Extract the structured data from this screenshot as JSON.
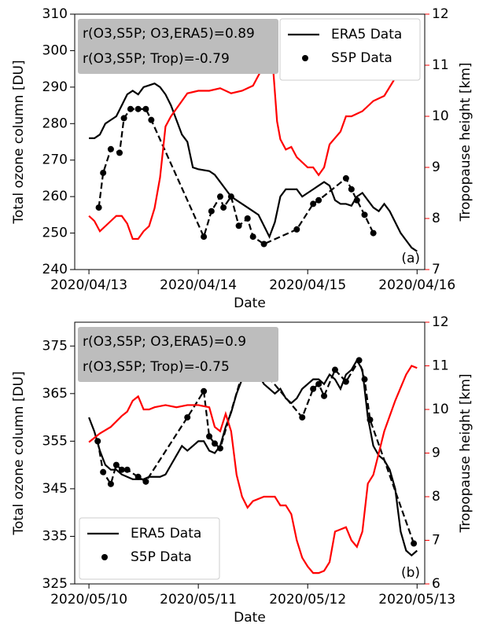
{
  "chart_data": [
    {
      "type": "line",
      "panel_label": "(a)",
      "xlabel": "Date",
      "ylabel": "Total ozone column [DU]",
      "y2label": "Tropopause height [km]",
      "y2color": "#ff0000",
      "legend": "upper right",
      "annotations": [
        "r(O3,S5P; O3,ERA5)=0.89",
        "r(O3,S5P; Trop)=-0.79"
      ],
      "xlim": [
        -0.13,
        3.07
      ],
      "xticks": [
        {
          "value": 0,
          "label": "2020/04/13"
        },
        {
          "value": 1,
          "label": "2020/04/14"
        },
        {
          "value": 2,
          "label": "2020/04/15"
        },
        {
          "value": 3,
          "label": "2020/04/16"
        }
      ],
      "ylim": [
        240,
        310
      ],
      "yticks": [
        240,
        250,
        260,
        270,
        280,
        290,
        300,
        310
      ],
      "y2lim": [
        7,
        12
      ],
      "y2ticks": [
        7,
        8,
        9,
        10,
        11,
        12
      ],
      "series": [
        {
          "name": "ERA5 Data",
          "color": "#000000",
          "axis": "y",
          "x": [
            0,
            0.05,
            0.1,
            0.15,
            0.2,
            0.25,
            0.3,
            0.35,
            0.4,
            0.45,
            0.5,
            0.55,
            0.6,
            0.65,
            0.7,
            0.75,
            0.8,
            0.85,
            0.9,
            0.95,
            1.0,
            1.1,
            1.15,
            1.2,
            1.25,
            1.3,
            1.35,
            1.4,
            1.45,
            1.5,
            1.55,
            1.6,
            1.65,
            1.7,
            1.75,
            1.8,
            1.85,
            1.9,
            1.95,
            2.0,
            2.05,
            2.1,
            2.15,
            2.2,
            2.25,
            2.3,
            2.35,
            2.4,
            2.45,
            2.5,
            2.55,
            2.6,
            2.65,
            2.7,
            2.75,
            2.8,
            2.85,
            2.9,
            2.95,
            3.0
          ],
          "values": [
            276,
            276,
            277,
            280,
            281,
            282,
            285,
            288,
            289,
            288,
            290,
            290.5,
            291,
            290,
            288,
            285,
            281,
            277,
            275,
            268,
            267.5,
            267,
            266,
            264,
            262,
            260,
            259,
            258,
            257,
            256,
            255,
            252,
            249,
            253,
            260,
            262,
            262,
            262,
            260,
            261,
            262,
            263,
            264,
            263,
            259,
            258,
            258,
            257.5,
            260,
            261,
            259,
            257,
            256,
            258,
            256,
            253,
            250,
            248,
            246,
            245
          ]
        },
        {
          "name": "S5P Data",
          "color": "#000000",
          "axis": "y",
          "dashed": true,
          "markers": true,
          "x": [
            0.09,
            0.13,
            0.2,
            0.28,
            0.32,
            0.38,
            0.45,
            0.52,
            0.57,
            1.05,
            1.12,
            1.2,
            1.23,
            1.3,
            1.37,
            1.45,
            1.5,
            1.6,
            1.9,
            2.05,
            2.1,
            2.35,
            2.4,
            2.45,
            2.52,
            2.6
          ],
          "values": [
            257,
            266.5,
            273,
            272,
            281.5,
            284,
            284,
            284,
            281,
            249,
            256,
            260,
            257,
            260,
            252,
            254,
            249,
            247,
            251,
            258,
            259,
            265,
            262,
            259,
            255,
            250
          ]
        },
        {
          "color": "#ff0000",
          "axis": "y2",
          "x": [
            0,
            0.05,
            0.1,
            0.15,
            0.2,
            0.25,
            0.3,
            0.35,
            0.4,
            0.45,
            0.5,
            0.55,
            0.6,
            0.65,
            0.7,
            0.75,
            0.8,
            0.85,
            0.9,
            1.0,
            1.1,
            1.2,
            1.3,
            1.4,
            1.5,
            1.55,
            1.6,
            1.65,
            1.68,
            1.72,
            1.75,
            1.8,
            1.85,
            1.9,
            2.0,
            2.05,
            2.1,
            2.15,
            2.2,
            2.3,
            2.35,
            2.4,
            2.5,
            2.6,
            2.7,
            2.8,
            2.9,
            3.0
          ],
          "values": [
            8.05,
            7.95,
            7.75,
            7.85,
            7.95,
            8.05,
            8.05,
            7.9,
            7.6,
            7.6,
            7.75,
            7.85,
            8.2,
            8.8,
            9.8,
            10.0,
            10.15,
            10.3,
            10.45,
            10.5,
            10.5,
            10.55,
            10.45,
            10.5,
            10.6,
            10.8,
            11.0,
            11.2,
            11.05,
            9.9,
            9.55,
            9.35,
            9.4,
            9.2,
            9.0,
            9.0,
            8.85,
            9.0,
            9.45,
            9.7,
            10.0,
            10.0,
            10.1,
            10.3,
            10.4,
            10.75,
            10.8,
            10.8
          ]
        }
      ]
    },
    {
      "type": "line",
      "panel_label": "(b)",
      "xlabel": "Date",
      "ylabel": "Total ozone column [DU]",
      "y2label": "Tropopause height [km]",
      "y2color": "#ff0000",
      "legend": "lower left",
      "annotations": [
        "r(O3,S5P; O3,ERA5)=0.9",
        "r(O3,S5P; Trop)=-0.75"
      ],
      "xlim": [
        -0.13,
        3.07
      ],
      "xticks": [
        {
          "value": 0,
          "label": "2020/05/10"
        },
        {
          "value": 1,
          "label": "2020/05/11"
        },
        {
          "value": 2,
          "label": "2020/05/12"
        },
        {
          "value": 3,
          "label": "2020/05/13"
        }
      ],
      "ylim": [
        325,
        380
      ],
      "yticks": [
        325,
        335,
        345,
        355,
        365,
        375
      ],
      "y2lim": [
        6,
        12
      ],
      "y2ticks": [
        6,
        7,
        8,
        9,
        10,
        11,
        12
      ],
      "series": [
        {
          "name": "ERA5 Data",
          "color": "#000000",
          "axis": "y",
          "x": [
            0,
            0.05,
            0.1,
            0.15,
            0.2,
            0.25,
            0.3,
            0.35,
            0.4,
            0.45,
            0.5,
            0.55,
            0.6,
            0.65,
            0.7,
            0.75,
            0.8,
            0.85,
            0.9,
            0.95,
            1.0,
            1.05,
            1.1,
            1.15,
            1.2,
            1.25,
            1.3,
            1.35,
            1.4,
            1.45,
            1.5,
            1.55,
            1.6,
            1.7,
            1.75,
            1.8,
            1.85,
            1.9,
            1.95,
            2.0,
            2.05,
            2.1,
            2.15,
            2.2,
            2.25,
            2.3,
            2.35,
            2.4,
            2.45,
            2.5,
            2.55,
            2.6,
            2.65,
            2.7,
            2.75,
            2.8,
            2.85,
            2.9,
            2.95,
            3.0
          ],
          "values": [
            360,
            357,
            353,
            350,
            349,
            349,
            348,
            347.5,
            347,
            347,
            347,
            347.5,
            347.5,
            347.5,
            348,
            350,
            352,
            354,
            353,
            354,
            355,
            355,
            353,
            352.5,
            354,
            358,
            361,
            365,
            368,
            372,
            371,
            369,
            367,
            365,
            366,
            364,
            363,
            364,
            366,
            367,
            368,
            368,
            367,
            369,
            368,
            366,
            369,
            370,
            372,
            370,
            360,
            354,
            352,
            351,
            349,
            345,
            336,
            332,
            331,
            332
          ]
        },
        {
          "name": "S5P Data",
          "color": "#000000",
          "axis": "y",
          "dashed": true,
          "markers": true,
          "x": [
            0.08,
            0.13,
            0.2,
            0.25,
            0.3,
            0.35,
            0.45,
            0.52,
            0.9,
            1.05,
            1.1,
            1.15,
            1.2,
            1.4,
            1.45,
            1.55,
            1.95,
            2.05,
            2.1,
            2.15,
            2.25,
            2.35,
            2.47,
            2.52,
            2.57,
            2.97
          ],
          "values": [
            355,
            348.5,
            346,
            350,
            349,
            349,
            347.5,
            346.5,
            360,
            365.5,
            356,
            354.5,
            353.5,
            369,
            373,
            371,
            360,
            366,
            367,
            364.5,
            370,
            367.5,
            372,
            368,
            359.5,
            333.5
          ]
        },
        {
          "color": "#ff0000",
          "axis": "y2",
          "x": [
            0,
            0.1,
            0.2,
            0.3,
            0.35,
            0.4,
            0.45,
            0.5,
            0.55,
            0.6,
            0.7,
            0.8,
            0.9,
            1.0,
            1.1,
            1.15,
            1.2,
            1.25,
            1.3,
            1.35,
            1.4,
            1.45,
            1.5,
            1.6,
            1.7,
            1.75,
            1.8,
            1.85,
            1.9,
            1.95,
            2.0,
            2.05,
            2.1,
            2.15,
            2.2,
            2.25,
            2.3,
            2.35,
            2.4,
            2.45,
            2.5,
            2.55,
            2.6,
            2.65,
            2.7,
            2.8,
            2.9,
            2.95,
            3.0
          ],
          "values": [
            9.25,
            9.45,
            9.6,
            9.85,
            9.95,
            10.2,
            10.3,
            10.0,
            10.0,
            10.05,
            10.1,
            10.05,
            10.1,
            10.1,
            10.05,
            9.6,
            9.5,
            9.9,
            9.5,
            8.5,
            8.0,
            7.75,
            7.9,
            8.0,
            8.0,
            7.8,
            7.8,
            7.6,
            7.0,
            6.6,
            6.4,
            6.25,
            6.25,
            6.3,
            6.5,
            7.2,
            7.25,
            7.3,
            7.0,
            6.85,
            7.2,
            8.3,
            8.5,
            9.0,
            9.5,
            10.2,
            10.8,
            11.0,
            10.95
          ]
        }
      ]
    }
  ]
}
